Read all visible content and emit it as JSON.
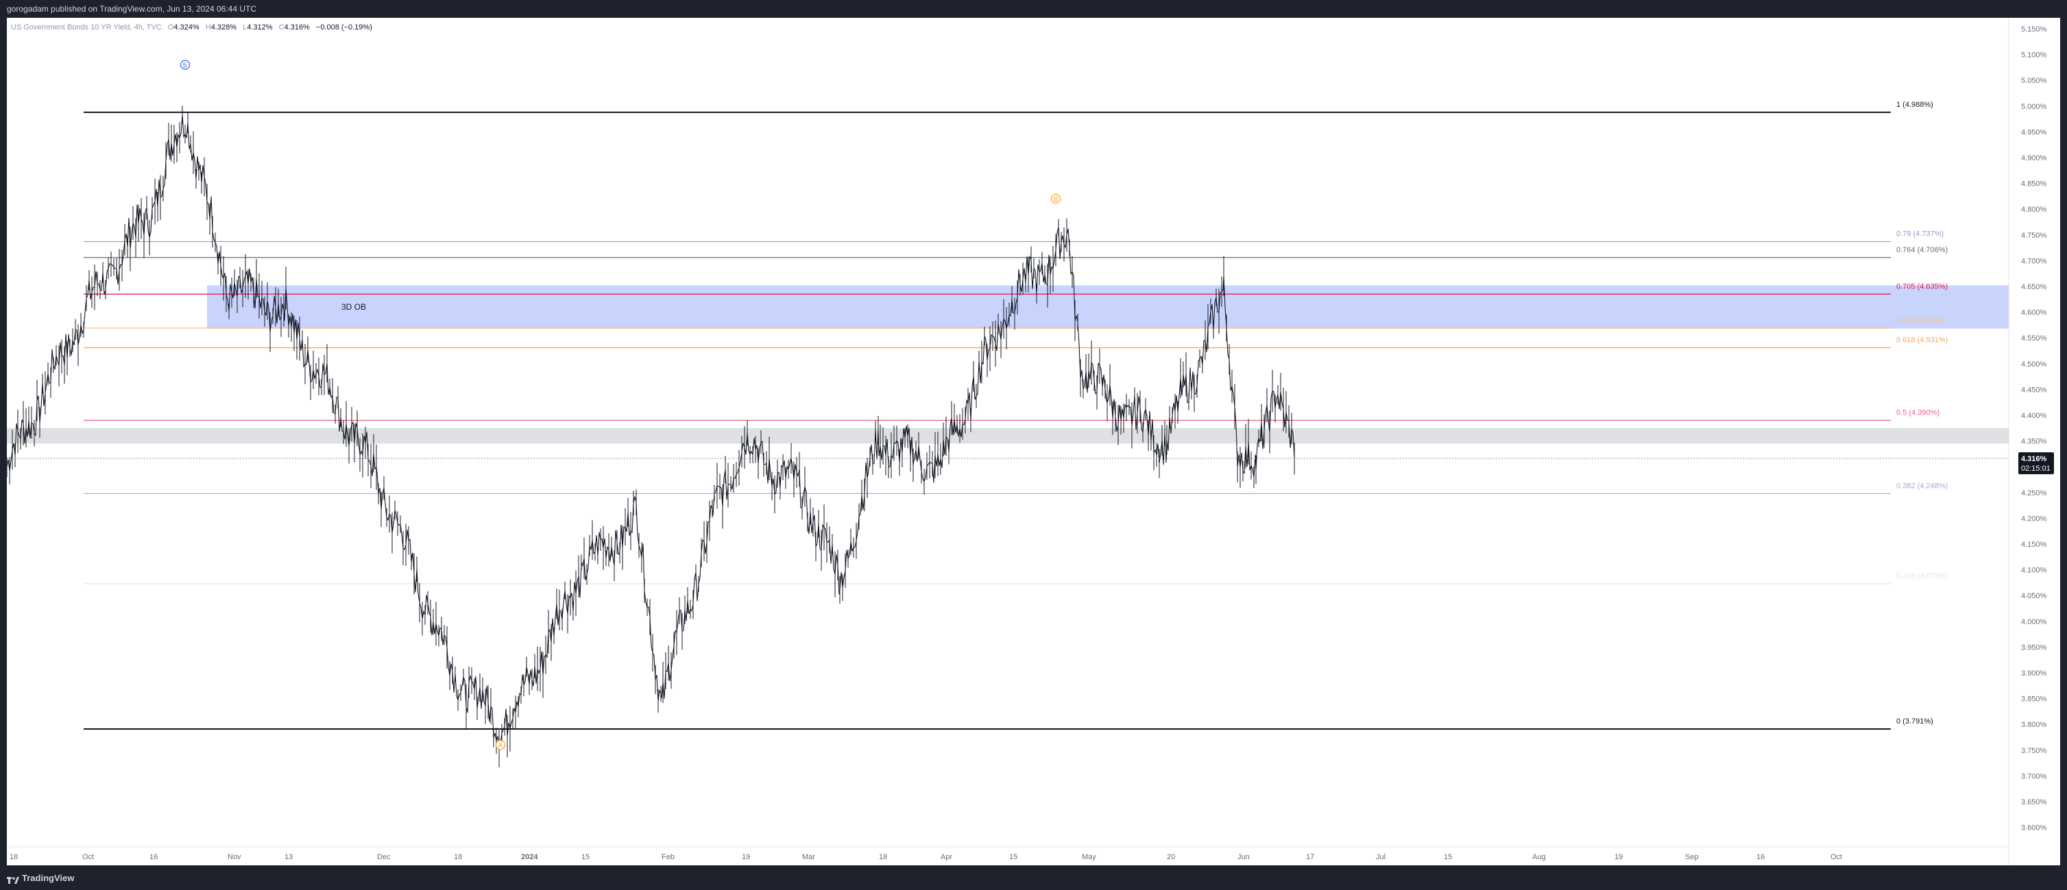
{
  "header": {
    "publisher_line": "gorogadam published on TradingView.com, Jun 13, 2024 06:44 UTC"
  },
  "legend": {
    "symbol": "US Government Bonds 10 YR Yield",
    "interval": "4h",
    "source": "TVC",
    "open_label": "O",
    "open": "4.324%",
    "high_label": "H",
    "high": "4.328%",
    "low_label": "L",
    "low": "4.312%",
    "close_label": "C",
    "close": "4.316%",
    "change": "−0.008 (−0.19%)"
  },
  "zone_label": "3D OB",
  "wave_labels": {
    "w5": "5",
    "wa": "A",
    "wb": "B"
  },
  "price_badge": {
    "price": "4.316%",
    "countdown": "02:15:01"
  },
  "fib_levels": [
    {
      "label": "1 (4.988%)",
      "price": 4.988,
      "color": "#131722"
    },
    {
      "label": "0.79 (4.737%)",
      "price": 4.737,
      "color": "#9598c8"
    },
    {
      "label": "0.764 (4.706%)",
      "price": 4.706,
      "color": "#6a6d78"
    },
    {
      "label": "0.705 (4.635%)",
      "price": 4.635,
      "color": "#e0134a"
    },
    {
      "label": "0.65 (4.569%)",
      "price": 4.569,
      "color": "#f7c07d"
    },
    {
      "label": "0.618 (4.531%)",
      "price": 4.531,
      "color": "#f7a35c"
    },
    {
      "label": "0.5 (4.390%)",
      "price": 4.39,
      "color": "#f06080"
    },
    {
      "label": "0.382 (4.248%)",
      "price": 4.248,
      "color": "#a6a8d8"
    },
    {
      "label": "0.236 (4.073%)",
      "price": 4.073,
      "color": "#e4e5ea"
    },
    {
      "label": "0 (3.791%)",
      "price": 3.791,
      "color": "#131722"
    }
  ],
  "price_axis": [
    "5.150%",
    "5.100%",
    "5.050%",
    "5.000%",
    "4.950%",
    "4.900%",
    "4.850%",
    "4.800%",
    "4.750%",
    "4.700%",
    "4.650%",
    "4.600%",
    "4.550%",
    "4.500%",
    "4.450%",
    "4.400%",
    "4.350%",
    "4.300%",
    "4.250%",
    "4.200%",
    "4.150%",
    "4.100%",
    "4.050%",
    "4.000%",
    "3.950%",
    "3.900%",
    "3.850%",
    "3.800%",
    "3.750%",
    "3.700%",
    "3.650%",
    "3.600%"
  ],
  "time_axis": [
    "18",
    "Oct",
    "16",
    "Nov",
    "13",
    "Dec",
    "18",
    "2024",
    "15",
    "Feb",
    "19",
    "Mar",
    "18",
    "Apr",
    "15",
    "May",
    "20",
    "Jun",
    "17",
    "Jul",
    "15",
    "Aug",
    "19",
    "Sep",
    "16",
    "Oct"
  ],
  "footer": {
    "brand": "TradingView"
  },
  "colors": {
    "ob_zone": "#c3cffd",
    "candles": "#131722",
    "badge_bg": "#131722"
  },
  "chart_data": {
    "type": "line",
    "title": "",
    "xlabel": "",
    "ylabel": "",
    "ylim": [
      3.6,
      5.15
    ],
    "x": [
      "Sep 18",
      "Oct",
      "Oct 16",
      "Oct 23",
      "Nov",
      "Nov 13",
      "Dec",
      "Dec 18",
      "Dec 27",
      "2024",
      "Jan 15",
      "Jan 24",
      "Feb",
      "Feb 10",
      "Feb 19",
      "Mar",
      "Mar 12",
      "Mar 18",
      "Apr",
      "Apr 10",
      "Apr 15",
      "Apr 25",
      "May",
      "May 6",
      "May 20",
      "May 29",
      "Jun",
      "Jun 5",
      "Jun 10",
      "Jun 12"
    ],
    "series": [
      {
        "values": [
          4.3,
          4.6,
          4.8,
          4.988,
          4.65,
          4.6,
          4.28,
          3.9,
          3.8,
          3.85,
          4.1,
          4.2,
          3.85,
          4.2,
          4.35,
          4.25,
          4.08,
          4.35,
          4.3,
          4.45,
          4.62,
          4.737,
          4.5,
          4.43,
          4.35,
          4.63,
          4.35,
          4.29,
          4.47,
          4.316
        ]
      }
    ]
  }
}
